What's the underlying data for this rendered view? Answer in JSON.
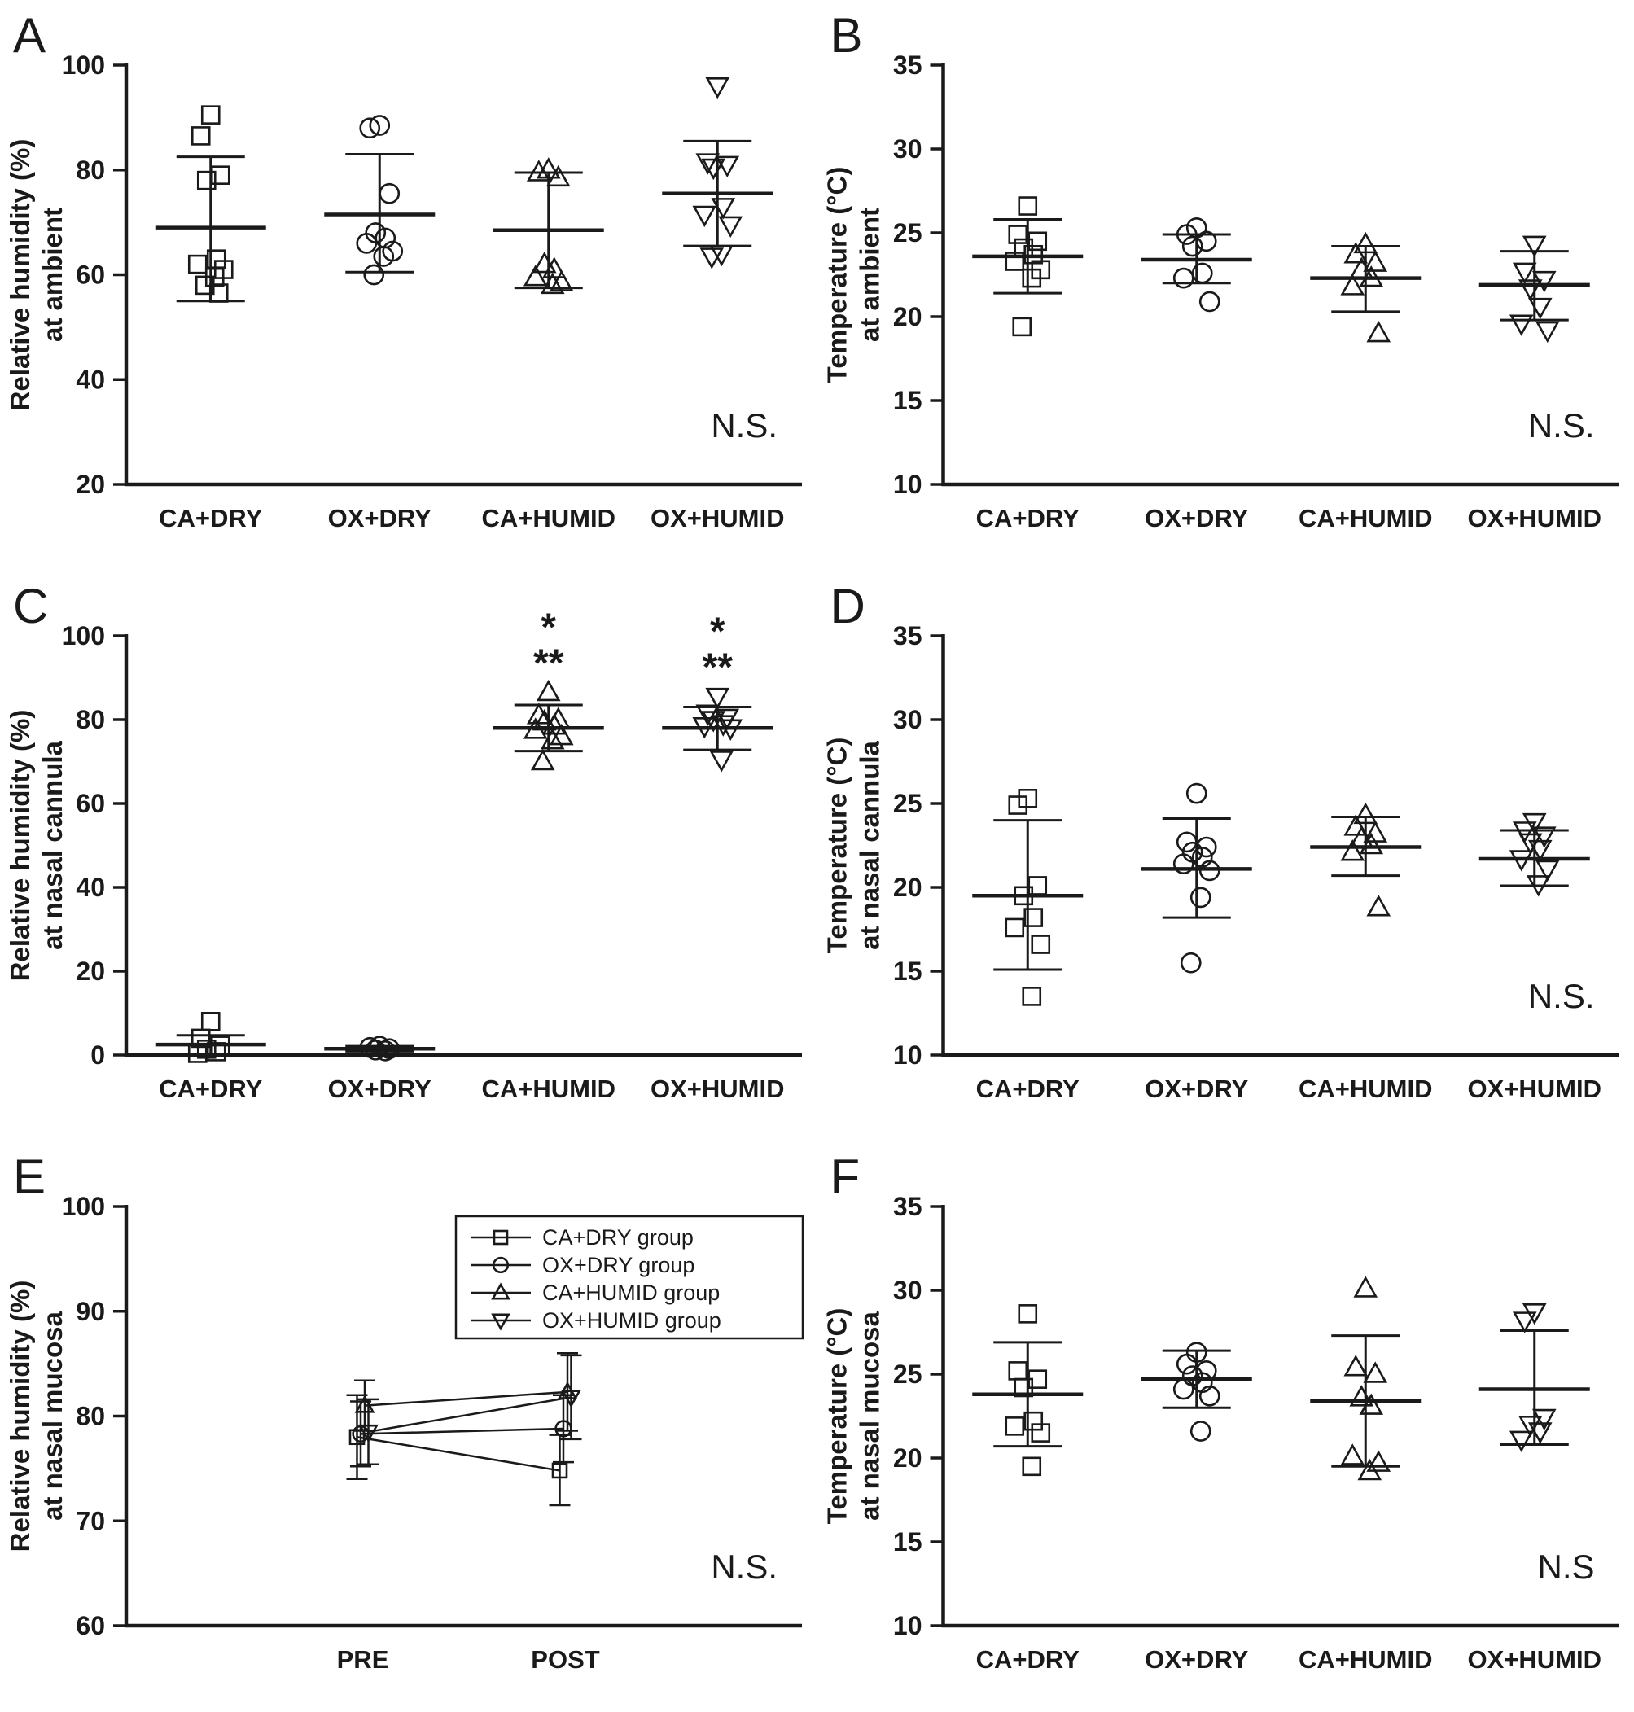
{
  "colors": {
    "axis": "#1a1a1a",
    "background": "#ffffff"
  },
  "chart_data": [
    {
      "panel": "A",
      "type": "scatter",
      "ylabel": [
        "Relative humidity (%)",
        "at ambient"
      ],
      "ylim": [
        20,
        100
      ],
      "yticks": [
        20,
        40,
        60,
        80,
        100
      ],
      "categories": [
        "CA+DRY",
        "OX+DRY",
        "CA+HUMID",
        "OX+HUMID"
      ],
      "annotation": "N.S.",
      "groups": [
        {
          "name": "CA+DRY",
          "marker": "square",
          "values": [
            90.5,
            86.5,
            79,
            78,
            63,
            62,
            61,
            59.5,
            58,
            56.5
          ],
          "mean": 69,
          "lo": 55,
          "hi": 82.5
        },
        {
          "name": "OX+DRY",
          "marker": "circle",
          "values": [
            88.5,
            88,
            75.5,
            68,
            67,
            66,
            64.5,
            63.5,
            60
          ],
          "mean": 71.5,
          "lo": 60.5,
          "hi": 83
        },
        {
          "name": "CA+HUMID",
          "marker": "triangle-up",
          "values": [
            80,
            79.5,
            78.5,
            62,
            61,
            59.5,
            58.5,
            58
          ],
          "mean": 68.5,
          "lo": 57.5,
          "hi": 79.5
        },
        {
          "name": "OX+HUMID",
          "marker": "triangle-down",
          "values": [
            96,
            81.5,
            81,
            80.5,
            73,
            71.5,
            69.5,
            64,
            63.5
          ],
          "mean": 75.5,
          "lo": 65.5,
          "hi": 85.5
        }
      ]
    },
    {
      "panel": "B",
      "type": "scatter",
      "ylabel": [
        "Temperature (°C)",
        "at ambient"
      ],
      "ylim": [
        10,
        35
      ],
      "yticks": [
        10,
        15,
        20,
        25,
        30,
        35
      ],
      "categories": [
        "CA+DRY",
        "OX+DRY",
        "CA+HUMID",
        "OX+HUMID"
      ],
      "annotation": "N.S.",
      "groups": [
        {
          "name": "CA+DRY",
          "marker": "square",
          "values": [
            26.6,
            24.9,
            24.5,
            24.1,
            23.7,
            23.3,
            22.8,
            22.3,
            19.4
          ],
          "mean": 23.6,
          "lo": 21.4,
          "hi": 25.8
        },
        {
          "name": "OX+DRY",
          "marker": "circle",
          "values": [
            25.3,
            24.9,
            24.5,
            24.2,
            22.6,
            22.3,
            20.9
          ],
          "mean": 23.4,
          "lo": 22,
          "hi": 24.9
        },
        {
          "name": "CA+HUMID",
          "marker": "triangle-up",
          "values": [
            24.3,
            23.7,
            23.2,
            22.8,
            22.3,
            21.8,
            19
          ],
          "mean": 22.3,
          "lo": 20.3,
          "hi": 24.2
        },
        {
          "name": "OX+HUMID",
          "marker": "triangle-down",
          "values": [
            24.3,
            22.7,
            22.2,
            21.7,
            20.6,
            19.6,
            19.2
          ],
          "mean": 21.9,
          "lo": 19.8,
          "hi": 23.9
        }
      ]
    },
    {
      "panel": "C",
      "type": "scatter",
      "ylabel": [
        "Relative humidity (%)",
        "at nasal cannula"
      ],
      "ylim": [
        0,
        100
      ],
      "yticks": [
        0,
        20,
        40,
        60,
        80,
        100
      ],
      "categories": [
        "CA+DRY",
        "OX+DRY",
        "CA+HUMID",
        "OX+HUMID"
      ],
      "annotation": "",
      "groups": [
        {
          "name": "CA+DRY",
          "marker": "square",
          "values": [
            8,
            4,
            2.3,
            1.4,
            0.8,
            0.4
          ],
          "mean": 2.5,
          "lo": 0.3,
          "hi": 4.7
        },
        {
          "name": "OX+DRY",
          "marker": "circle",
          "values": [
            2.1,
            1.8,
            1.5,
            1.2,
            1
          ],
          "mean": 1.5,
          "lo": 0.9,
          "hi": 2.1
        },
        {
          "name": "CA+HUMID",
          "marker": "triangle-up",
          "values": [
            86.5,
            81,
            80,
            79.5,
            78.5,
            77.5,
            76,
            75,
            70
          ],
          "mean": 78,
          "lo": 72.5,
          "hi": 83.5,
          "sig": [
            "*",
            "**"
          ]
        },
        {
          "name": "OX+HUMID",
          "marker": "triangle-down",
          "values": [
            85.5,
            81.5,
            80.5,
            80,
            79,
            78.5,
            78,
            70.5
          ],
          "mean": 78,
          "lo": 72.8,
          "hi": 83,
          "sig": [
            "*",
            "**"
          ]
        }
      ]
    },
    {
      "panel": "D",
      "type": "scatter",
      "ylabel": [
        "Temperature (°C)",
        "at nasal cannula"
      ],
      "ylim": [
        10,
        35
      ],
      "yticks": [
        10,
        15,
        20,
        25,
        30,
        35
      ],
      "categories": [
        "CA+DRY",
        "OX+DRY",
        "CA+HUMID",
        "OX+HUMID"
      ],
      "annotation": "N.S.",
      "groups": [
        {
          "name": "CA+DRY",
          "marker": "square",
          "values": [
            25.3,
            24.9,
            20.1,
            19.5,
            18.2,
            17.6,
            16.6,
            13.5
          ],
          "mean": 19.5,
          "lo": 15.1,
          "hi": 24
        },
        {
          "name": "OX+DRY",
          "marker": "circle",
          "values": [
            25.6,
            22.7,
            22.4,
            22.1,
            21.8,
            21.4,
            21,
            19.4,
            15.5
          ],
          "mean": 21.1,
          "lo": 18.2,
          "hi": 24.1
        },
        {
          "name": "CA+HUMID",
          "marker": "triangle-up",
          "values": [
            24.3,
            23.6,
            23.2,
            22.9,
            22.5,
            22.1,
            18.8
          ],
          "mean": 22.4,
          "lo": 20.7,
          "hi": 24.2
        },
        {
          "name": "OX+HUMID",
          "marker": "triangle-down",
          "values": [
            23.9,
            23.4,
            23.1,
            22.7,
            22.3,
            21.7,
            21.1,
            20.2
          ],
          "mean": 21.7,
          "lo": 20.1,
          "hi": 23.4
        }
      ]
    },
    {
      "panel": "E",
      "type": "line",
      "ylabel": [
        "Relative humidity (%)",
        "at nasal mucosa"
      ],
      "ylim": [
        60,
        100
      ],
      "yticks": [
        60,
        70,
        80,
        90,
        100
      ],
      "x_categories": [
        "PRE",
        "POST"
      ],
      "annotation": "N.S.",
      "series": [
        {
          "name": "CA+DRY group",
          "marker": "square",
          "pre": {
            "mean": 78,
            "lo": 74,
            "hi": 82
          },
          "post": {
            "mean": 74.8,
            "lo": 71.5,
            "hi": 78.2
          }
        },
        {
          "name": "OX+DRY group",
          "marker": "circle",
          "pre": {
            "mean": 78.3,
            "lo": 75.2,
            "hi": 81.4
          },
          "post": {
            "mean": 78.8,
            "lo": 75.6,
            "hi": 82
          }
        },
        {
          "name": "CA+HUMID group",
          "marker": "triangle-up",
          "pre": {
            "mean": 81,
            "lo": 78.6,
            "hi": 83.4
          },
          "post": {
            "mean": 82.3,
            "lo": 78.6,
            "hi": 86
          }
        },
        {
          "name": "OX+HUMID group",
          "marker": "triangle-down",
          "pre": {
            "mean": 78.5,
            "lo": 75.4,
            "hi": 81.6
          },
          "post": {
            "mean": 81.8,
            "lo": 77.8,
            "hi": 85.8
          }
        }
      ]
    },
    {
      "panel": "F",
      "type": "scatter",
      "ylabel": [
        "Temperature (°C)",
        "at nasal mucosa"
      ],
      "ylim": [
        10,
        35
      ],
      "yticks": [
        10,
        15,
        20,
        25,
        30,
        35
      ],
      "categories": [
        "CA+DRY",
        "OX+DRY",
        "CA+HUMID",
        "OX+HUMID"
      ],
      "annotation": "N.S",
      "groups": [
        {
          "name": "CA+DRY",
          "marker": "square",
          "values": [
            28.6,
            25.2,
            24.7,
            24.2,
            22.2,
            21.9,
            21.5,
            19.5
          ],
          "mean": 23.8,
          "lo": 20.7,
          "hi": 26.9
        },
        {
          "name": "OX+DRY",
          "marker": "circle",
          "values": [
            26.3,
            25.6,
            25.2,
            24.9,
            24.5,
            24.1,
            23.7,
            21.6
          ],
          "mean": 24.7,
          "lo": 23,
          "hi": 26.4
        },
        {
          "name": "CA+HUMID",
          "marker": "triangle-up",
          "values": [
            30.1,
            25.4,
            25,
            23.6,
            23.1,
            20.1,
            19.7,
            19.2
          ],
          "mean": 23.4,
          "lo": 19.5,
          "hi": 27.3
        },
        {
          "name": "OX+HUMID",
          "marker": "triangle-down",
          "values": [
            28.7,
            28.2,
            22.4,
            22,
            21.6,
            21.1
          ],
          "mean": 24.1,
          "lo": 20.8,
          "hi": 27.6
        }
      ]
    }
  ]
}
